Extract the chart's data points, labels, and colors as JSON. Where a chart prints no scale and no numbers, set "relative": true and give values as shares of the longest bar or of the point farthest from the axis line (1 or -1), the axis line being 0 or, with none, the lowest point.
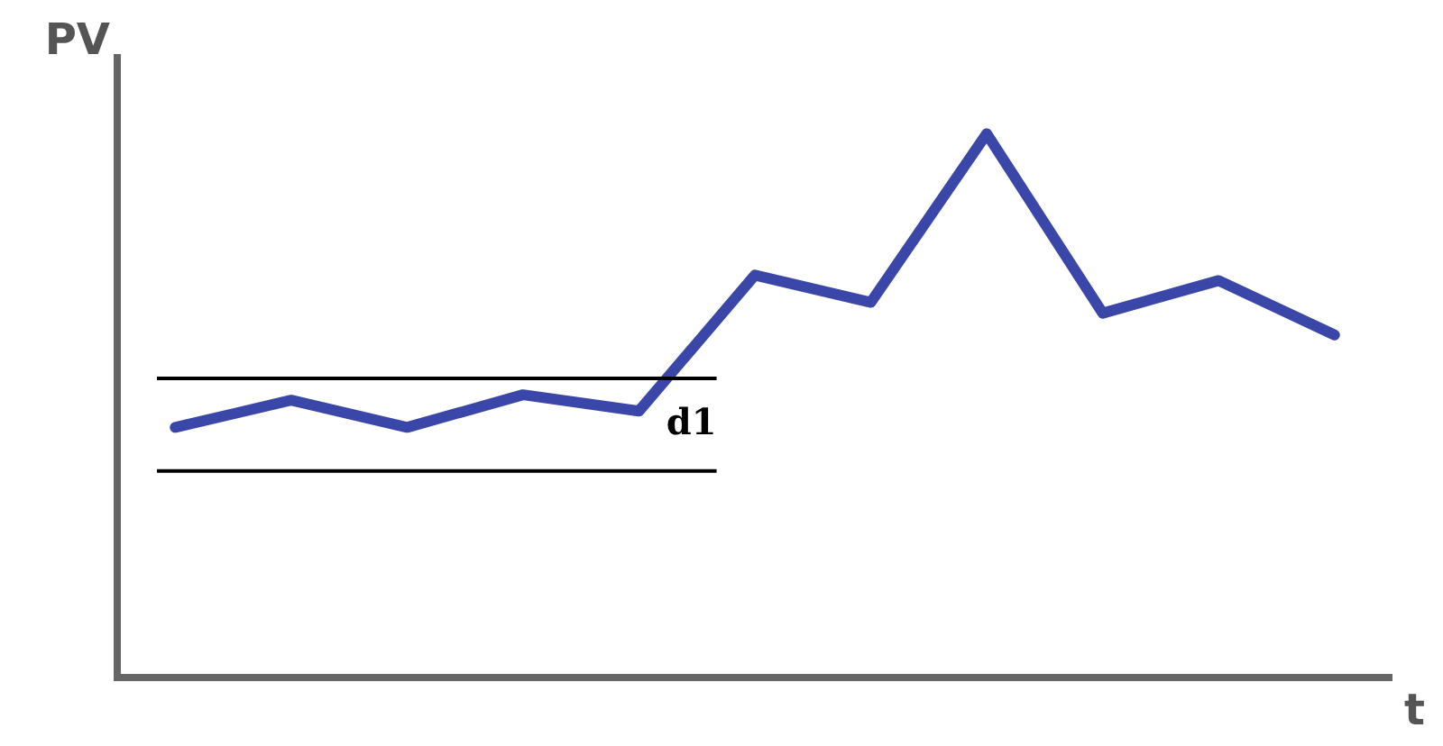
{
  "chart_data": {
    "type": "line",
    "xlabel": "t",
    "ylabel": "PV",
    "relative": true,
    "categories": [
      null,
      null,
      null,
      null,
      null,
      null,
      null,
      null,
      null,
      null,
      null
    ],
    "series": [
      {
        "color": "#3a47a8",
        "values": [
          0.46,
          0.51,
          0.46,
          0.52,
          0.49,
          0.74,
          0.69,
          1,
          0.67,
          0.73,
          0.63
        ]
      }
    ],
    "ref_lines": [
      {
        "axis": "y",
        "value": 0.55,
        "color": "#000000"
      },
      {
        "axis": "y",
        "value": 0.38,
        "color": "#000000"
      }
    ],
    "annotations": [
      "d1"
    ],
    "legend": false,
    "marker": "none",
    "line_style": "solid"
  }
}
